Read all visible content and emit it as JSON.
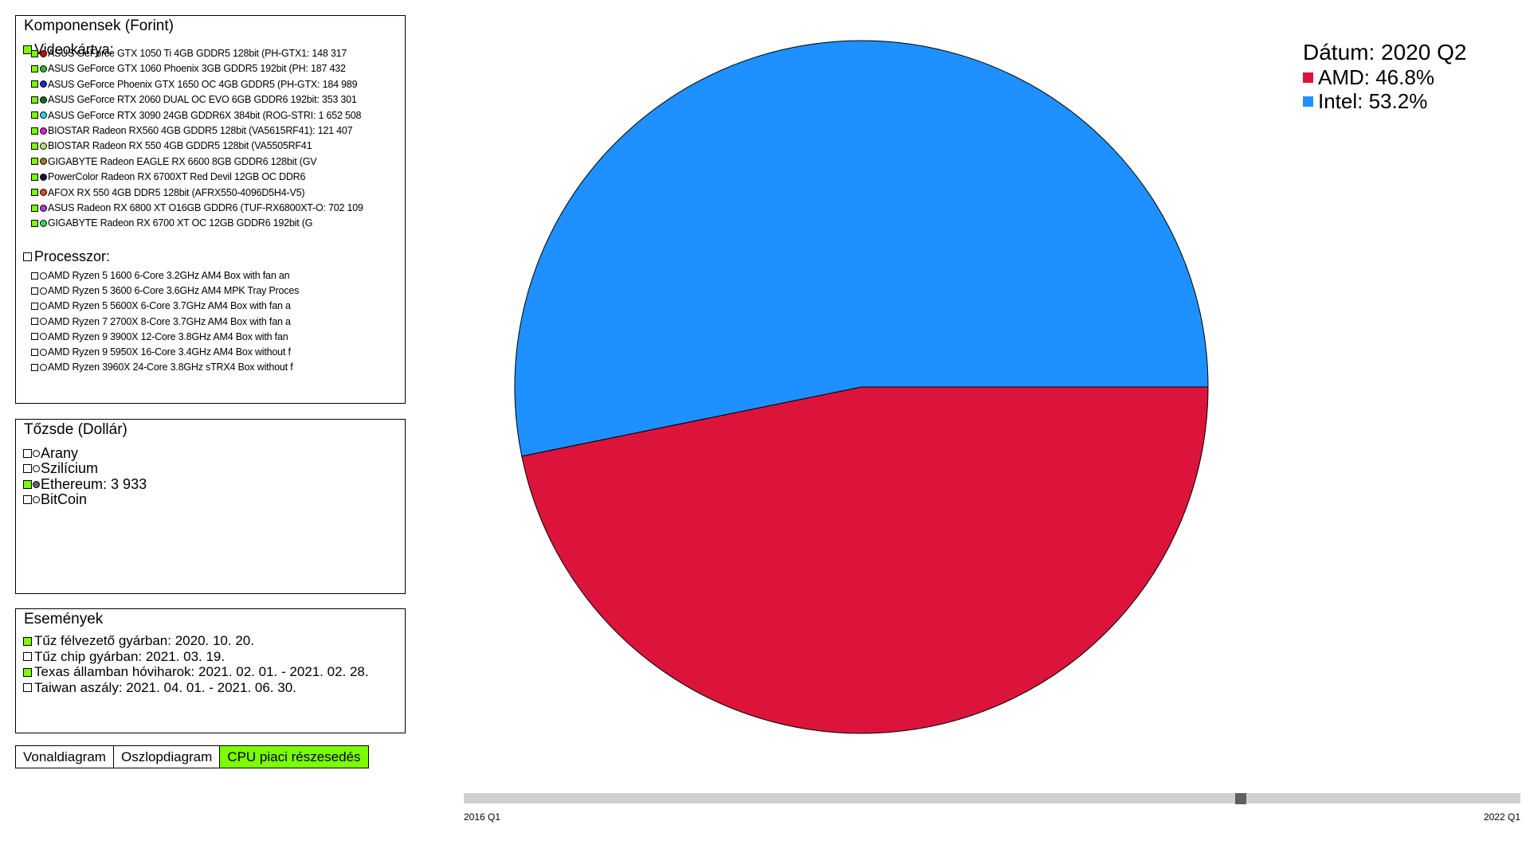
{
  "components_panel": {
    "title": "Komponensek (Forint)",
    "gpu_group": {
      "label": "Videokártya:",
      "checked": true,
      "items": [
        {
          "label": "ASUS GeForce GTX 1050 Ti 4GB GDDR5 128bit (PH-GTX1: 148 317",
          "color": "#d40000",
          "checked": true
        },
        {
          "label": "ASUS GeForce GTX 1060 Phoenix 3GB GDDR5 192bit (PH: 187 432",
          "color": "#22c02a",
          "checked": true
        },
        {
          "label": "ASUS GeForce Phoenix GTX 1650 OC 4GB GDDR5 (PH-GTX: 184 989",
          "color": "#1a28d0",
          "checked": true
        },
        {
          "label": "ASUS GeForce RTX 2060 DUAL OC EVO 6GB GDDR6 192bit: 353 301",
          "color": "#0f6e20",
          "checked": true
        },
        {
          "label": "ASUS GeForce RTX 3090 24GB GDDR6X 384bit (ROG-STRI: 1 652 508",
          "color": "#26d7e0",
          "checked": true
        },
        {
          "label": "BIOSTAR Radeon RX560 4GB GDDR5 128bit (VA5615RF41): 121 407",
          "color": "#e020d0",
          "checked": true
        },
        {
          "label": "BIOSTAR Radeon RX 550 4GB GDDR5 128bit (VA5505RF41",
          "color": "#b8e070",
          "checked": true
        },
        {
          "label": "GIGABYTE Radeon EAGLE RX 6600 8GB GDDR6 128bit (GV",
          "color": "#a07b20",
          "checked": true
        },
        {
          "label": "PowerColor Radeon RX 6700XT Red Devil 12GB OC DDR6",
          "color": "#151530",
          "checked": true
        },
        {
          "label": "AFOX RX 550 4GB DDR5 128bit (AFRX550-4096D5H4-V5)",
          "color": "#e04a20",
          "checked": true
        },
        {
          "label": "ASUS Radeon RX 6800 XT O16GB GDDR6 (TUF-RX6800XT-O: 702 109",
          "color": "#b040d8",
          "checked": true
        },
        {
          "label": "GIGABYTE Radeon RX 6700 XT OC 12GB GDDR6 192bit (G",
          "color": "#30e050",
          "checked": true
        }
      ]
    },
    "cpu_group": {
      "label": "Processzor:",
      "checked": false,
      "items": [
        {
          "label": "AMD Ryzen 5 1600 6-Core 3.2GHz AM4 Box with fan an",
          "checked": false
        },
        {
          "label": "AMD Ryzen 5 3600 6-Core 3.6GHz AM4 MPK Tray Proces",
          "checked": false
        },
        {
          "label": "AMD Ryzen 5 5600X 6-Core 3.7GHz AM4 Box with fan a",
          "checked": false
        },
        {
          "label": "AMD Ryzen 7 2700X 8-Core 3.7GHz AM4 Box with fan a",
          "checked": false
        },
        {
          "label": "AMD Ryzen 9 3900X 12-Core 3.8GHz AM4 Box with fan",
          "checked": false
        },
        {
          "label": "AMD Ryzen 9 5950X 16-Core 3.4GHz AM4 Box without f",
          "checked": false
        },
        {
          "label": "AMD Ryzen 3960X 24-Core 3.8GHz sTRX4 Box without f",
          "checked": false
        }
      ]
    }
  },
  "stock_panel": {
    "title": "Tőzsde (Dollár)",
    "items": [
      {
        "label": "Arany",
        "checked": false,
        "color": "#ffffff"
      },
      {
        "label": "Szilícium",
        "checked": false,
        "color": "#ffffff"
      },
      {
        "label": "Ethereum: 3 933",
        "checked": true,
        "color": "#556b6b"
      },
      {
        "label": "BitCoin",
        "checked": false,
        "color": "#ffffff"
      }
    ]
  },
  "events_panel": {
    "title": "Események",
    "items": [
      {
        "label": "Tűz félvezető gyárban: 2020. 10. 20.",
        "checked": true
      },
      {
        "label": "Tűz chip gyárban: 2021. 03. 19.",
        "checked": false
      },
      {
        "label": "Texas államban hóviharok: 2021. 02. 01. - 2021. 02. 28.",
        "checked": true
      },
      {
        "label": "Taiwan aszály: 2021. 04. 01. - 2021. 06. 30.",
        "checked": false
      }
    ]
  },
  "tabs": [
    {
      "label": "Vonaldiagram",
      "active": false
    },
    {
      "label": "Oszlopdiagram",
      "active": false
    },
    {
      "label": "CPU piaci részesedés",
      "active": true
    }
  ],
  "chart_data": {
    "type": "pie",
    "slices": [
      {
        "label": "AMD",
        "value": 46.8,
        "color": "#dc143c",
        "display": "AMD: 46.8%"
      },
      {
        "label": "Intel",
        "value": 53.2,
        "color": "#1e90ff",
        "display": "Intel: 53.2%"
      }
    ],
    "legend_title": "Dátum: 2020 Q2",
    "legend_position": "top-right"
  },
  "time_slider": {
    "start_label": "2016 Q1",
    "end_label": "2022 Q1",
    "current_label": "2020 Q2",
    "position_fraction": 0.735
  }
}
